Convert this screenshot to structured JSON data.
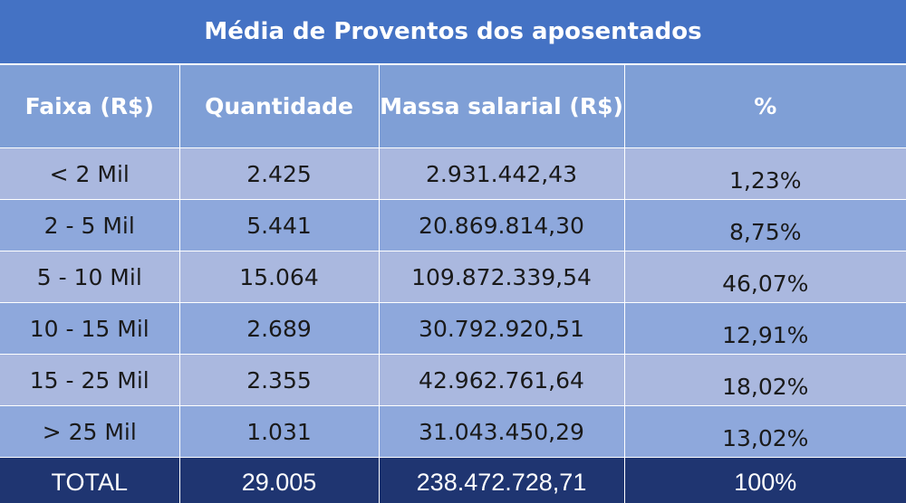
{
  "title": "Média de Proventos dos aposentados",
  "headers": [
    "Faixa (R$)",
    "Quantidade",
    "Massa salarial (R$)",
    "%"
  ],
  "rows": [
    {
      "faixa": "< 2 Mil",
      "quantidade": "2.425",
      "massa": "2.931.442,43",
      "pct": "1,23%"
    },
    {
      "faixa": "2 - 5 Mil",
      "quantidade": "5.441",
      "massa": "20.869.814,30",
      "pct": "8,75%"
    },
    {
      "faixa": "5 - 10 Mil",
      "quantidade": "15.064",
      "massa": "109.872.339,54",
      "pct": "46,07%"
    },
    {
      "faixa": "10 - 15 Mil",
      "quantidade": "2.689",
      "massa": "30.792.920,51",
      "pct": "12,91%"
    },
    {
      "faixa": "15 - 25 Mil",
      "quantidade": "2.355",
      "massa": "42.962.761,64",
      "pct": "18,02%"
    },
    {
      "faixa": "> 25 Mil",
      "quantidade": "1.031",
      "massa": "31.043.450,29",
      "pct": "13,02%"
    }
  ],
  "total": {
    "label": "TOTAL",
    "quantidade": "29.005",
    "massa": "238.472.728,71",
    "pct": "100%"
  },
  "colors": {
    "title_bg": "#4472c4",
    "header_bg": "#7f9fd6",
    "row_light": "#aab8df",
    "row_dark": "#8ea8dc",
    "total_bg": "#1f3571"
  }
}
